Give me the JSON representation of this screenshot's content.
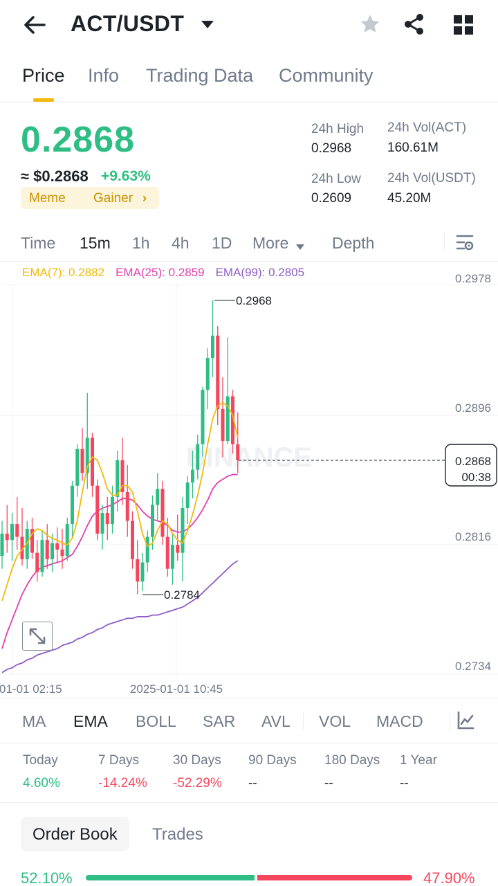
{
  "header": {
    "pair": "ACT/USDT",
    "icons": [
      "back-arrow-icon",
      "caret-down-icon",
      "star-icon",
      "share-icon",
      "grid-icon"
    ]
  },
  "tabs": [
    {
      "label": "Price",
      "active": true
    },
    {
      "label": "Info"
    },
    {
      "label": "Trading Data"
    },
    {
      "label": "Community"
    }
  ],
  "ticker": {
    "last_price": "0.2868",
    "usd_price": "≈ $0.2868",
    "change_pct": "+9.63%",
    "tags": [
      "Meme",
      "Gainer"
    ],
    "high_label": "24h High",
    "high": "0.2968",
    "low_label": "24h Low",
    "low": "0.2609",
    "vol_base_label": "24h Vol(ACT)",
    "vol_base": "160.61M",
    "vol_quote_label": "24h Vol(USDT)",
    "vol_quote": "45.20M"
  },
  "intervals": {
    "items": [
      "Time",
      "15m",
      "1h",
      "4h",
      "1D",
      "More"
    ],
    "active": "15m",
    "depth": "Depth"
  },
  "chart": {
    "ema7": "EMA(7): 0.2882",
    "ema25": "EMA(25): 0.2859",
    "ema99": "EMA(99): 0.2805",
    "y_ticks": [
      "0.2978",
      "0.2896",
      "0.2816",
      "0.2734"
    ],
    "x_labels": [
      "01-01 02:15",
      "2025-01-01 10:45"
    ],
    "high_mark": "0.2968",
    "low_mark": "0.2784",
    "current_price": "0.2868",
    "countdown": "00:38",
    "watermark": "BINANCE",
    "colors": {
      "up": "#2ebd85",
      "down": "#f6465d",
      "ema7": "#f0b90b",
      "ema25": "#e13faf",
      "ema99": "#8d5cc6"
    }
  },
  "chart_data": {
    "type": "candlestick",
    "ylim": [
      0.2734,
      0.2978
    ],
    "candles": [
      {
        "o": 0.2808,
        "h": 0.283,
        "l": 0.28,
        "c": 0.2822
      },
      {
        "o": 0.2822,
        "h": 0.284,
        "l": 0.281,
        "c": 0.2818
      },
      {
        "o": 0.2818,
        "h": 0.2835,
        "l": 0.2805,
        "c": 0.2828
      },
      {
        "o": 0.2828,
        "h": 0.2845,
        "l": 0.2812,
        "c": 0.282
      },
      {
        "o": 0.282,
        "h": 0.2838,
        "l": 0.2802,
        "c": 0.2806
      },
      {
        "o": 0.2806,
        "h": 0.283,
        "l": 0.28,
        "c": 0.2825
      },
      {
        "o": 0.2825,
        "h": 0.2832,
        "l": 0.2806,
        "c": 0.281
      },
      {
        "o": 0.281,
        "h": 0.2818,
        "l": 0.2792,
        "c": 0.2798
      },
      {
        "o": 0.2798,
        "h": 0.2824,
        "l": 0.2795,
        "c": 0.2818
      },
      {
        "o": 0.2818,
        "h": 0.2828,
        "l": 0.28,
        "c": 0.2806
      },
      {
        "o": 0.2806,
        "h": 0.2822,
        "l": 0.2798,
        "c": 0.2816
      },
      {
        "o": 0.2816,
        "h": 0.2826,
        "l": 0.2804,
        "c": 0.2812
      },
      {
        "o": 0.2812,
        "h": 0.2825,
        "l": 0.28,
        "c": 0.2808
      },
      {
        "o": 0.2808,
        "h": 0.2832,
        "l": 0.2805,
        "c": 0.2828
      },
      {
        "o": 0.2828,
        "h": 0.2855,
        "l": 0.282,
        "c": 0.2852
      },
      {
        "o": 0.2852,
        "h": 0.2878,
        "l": 0.2845,
        "c": 0.2875
      },
      {
        "o": 0.2875,
        "h": 0.2888,
        "l": 0.2855,
        "c": 0.286
      },
      {
        "o": 0.286,
        "h": 0.291,
        "l": 0.285,
        "c": 0.2882
      },
      {
        "o": 0.2882,
        "h": 0.2885,
        "l": 0.2845,
        "c": 0.2852
      },
      {
        "o": 0.2852,
        "h": 0.2856,
        "l": 0.2818,
        "c": 0.2822
      },
      {
        "o": 0.2822,
        "h": 0.284,
        "l": 0.2812,
        "c": 0.2835
      },
      {
        "o": 0.2835,
        "h": 0.2845,
        "l": 0.2818,
        "c": 0.2828
      },
      {
        "o": 0.2828,
        "h": 0.2852,
        "l": 0.2822,
        "c": 0.2845
      },
      {
        "o": 0.2845,
        "h": 0.2874,
        "l": 0.2836,
        "c": 0.2868
      },
      {
        "o": 0.2868,
        "h": 0.2882,
        "l": 0.284,
        "c": 0.2848
      },
      {
        "o": 0.2848,
        "h": 0.2865,
        "l": 0.282,
        "c": 0.283
      },
      {
        "o": 0.283,
        "h": 0.2836,
        "l": 0.28,
        "c": 0.2806
      },
      {
        "o": 0.2806,
        "h": 0.2818,
        "l": 0.2784,
        "c": 0.2792
      },
      {
        "o": 0.2792,
        "h": 0.281,
        "l": 0.2786,
        "c": 0.2804
      },
      {
        "o": 0.2804,
        "h": 0.2824,
        "l": 0.2798,
        "c": 0.282
      },
      {
        "o": 0.282,
        "h": 0.2846,
        "l": 0.2812,
        "c": 0.284
      },
      {
        "o": 0.284,
        "h": 0.286,
        "l": 0.283,
        "c": 0.285
      },
      {
        "o": 0.285,
        "h": 0.2855,
        "l": 0.2815,
        "c": 0.282
      },
      {
        "o": 0.282,
        "h": 0.2832,
        "l": 0.2795,
        "c": 0.28
      },
      {
        "o": 0.28,
        "h": 0.2822,
        "l": 0.279,
        "c": 0.2815
      },
      {
        "o": 0.2815,
        "h": 0.2834,
        "l": 0.2805,
        "c": 0.281
      },
      {
        "o": 0.281,
        "h": 0.2845,
        "l": 0.2792,
        "c": 0.2838
      },
      {
        "o": 0.2838,
        "h": 0.2858,
        "l": 0.2828,
        "c": 0.2854
      },
      {
        "o": 0.2854,
        "h": 0.2874,
        "l": 0.2844,
        "c": 0.2862
      },
      {
        "o": 0.2862,
        "h": 0.2884,
        "l": 0.2856,
        "c": 0.2878
      },
      {
        "o": 0.2878,
        "h": 0.2914,
        "l": 0.287,
        "c": 0.2912
      },
      {
        "o": 0.2912,
        "h": 0.2938,
        "l": 0.29,
        "c": 0.2932
      },
      {
        "o": 0.2932,
        "h": 0.2968,
        "l": 0.292,
        "c": 0.2946
      },
      {
        "o": 0.2946,
        "h": 0.2952,
        "l": 0.289,
        "c": 0.29
      },
      {
        "o": 0.29,
        "h": 0.292,
        "l": 0.287,
        "c": 0.288
      },
      {
        "o": 0.288,
        "h": 0.2945,
        "l": 0.2878,
        "c": 0.2908
      },
      {
        "o": 0.2908,
        "h": 0.2912,
        "l": 0.2872,
        "c": 0.2878
      },
      {
        "o": 0.2878,
        "h": 0.2898,
        "l": 0.286,
        "c": 0.2868
      }
    ],
    "ema7": [
      0.278,
      0.279,
      0.28,
      0.2808,
      0.2812,
      0.2816,
      0.2822,
      0.2825,
      0.2824,
      0.2821,
      0.2819,
      0.2818,
      0.2816,
      0.2815,
      0.2819,
      0.283,
      0.2848,
      0.2864,
      0.287,
      0.2868,
      0.286,
      0.285,
      0.2846,
      0.2846,
      0.2852,
      0.2852,
      0.2848,
      0.2836,
      0.2822,
      0.2814,
      0.2816,
      0.2824,
      0.283,
      0.2828,
      0.2822,
      0.2818,
      0.2816,
      0.2824,
      0.2834,
      0.2846,
      0.286,
      0.2878,
      0.2894,
      0.2902,
      0.2904,
      0.2902,
      0.2896,
      0.2882
    ],
    "ema25": [
      0.275,
      0.276,
      0.2768,
      0.2776,
      0.2784,
      0.279,
      0.2795,
      0.2799,
      0.2801,
      0.2802,
      0.2803,
      0.2804,
      0.2805,
      0.2807,
      0.2809,
      0.2814,
      0.282,
      0.2827,
      0.2833,
      0.2836,
      0.2838,
      0.2839,
      0.284,
      0.2842,
      0.2844,
      0.2844,
      0.2843,
      0.284,
      0.2836,
      0.2833,
      0.2831,
      0.283,
      0.2829,
      0.2827,
      0.2824,
      0.2823,
      0.2823,
      0.2825,
      0.2828,
      0.2832,
      0.2837,
      0.2843,
      0.285,
      0.2854,
      0.2856,
      0.2858,
      0.2859,
      0.2859
    ],
    "ema99": [
      0.2735,
      0.2737,
      0.2738,
      0.274,
      0.2741,
      0.2743,
      0.2744,
      0.2746,
      0.2747,
      0.2748,
      0.2749,
      0.275,
      0.2752,
      0.2753,
      0.2754,
      0.2756,
      0.2757,
      0.2759,
      0.276,
      0.2762,
      0.2763,
      0.2765,
      0.2766,
      0.2767,
      0.2768,
      0.2769,
      0.2769,
      0.277,
      0.277,
      0.277,
      0.2771,
      0.2771,
      0.2772,
      0.2773,
      0.2774,
      0.2775,
      0.2776,
      0.2778,
      0.278,
      0.2782,
      0.2785,
      0.2788,
      0.2791,
      0.2794,
      0.2797,
      0.28,
      0.2803,
      0.2805
    ]
  },
  "indicators": {
    "items": [
      "MA",
      "EMA",
      "BOLL",
      "SAR",
      "AVL",
      "VOL",
      "MACD"
    ],
    "active": "EMA"
  },
  "performance": [
    {
      "label": "Today",
      "value": "4.60%",
      "dir": "up"
    },
    {
      "label": "7 Days",
      "value": "-14.24%",
      "dir": "down"
    },
    {
      "label": "30 Days",
      "value": "-52.29%",
      "dir": "down"
    },
    {
      "label": "90 Days",
      "value": "--",
      "dir": "none"
    },
    {
      "label": "180 Days",
      "value": "--",
      "dir": "none"
    },
    {
      "label": "1 Year",
      "value": "--",
      "dir": "none"
    }
  ],
  "orderbook": {
    "tabs": [
      "Order Book",
      "Trades"
    ],
    "buy_pct": "52.10%",
    "sell_pct": "47.90%",
    "buy_ratio": 0.521
  }
}
